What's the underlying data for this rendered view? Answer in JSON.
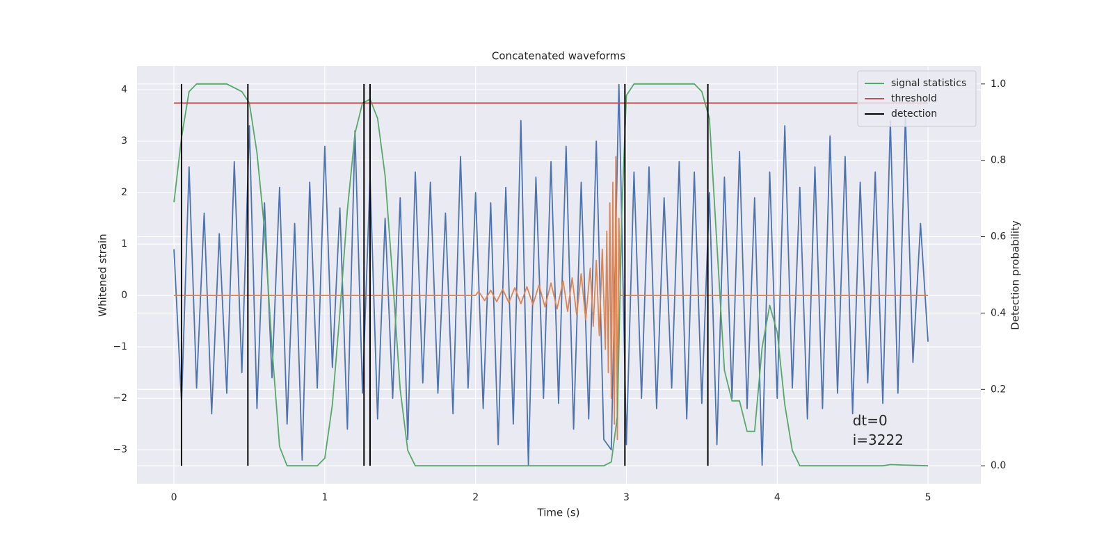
{
  "chart_data": {
    "type": "line",
    "title": "Concatenated waveforms",
    "xlabel": "Time (s)",
    "ylabel": "Whitened strain",
    "y2label": "Detection probability",
    "xlim": [
      -0.245,
      5.35
    ],
    "ylim": [
      -3.66,
      4.46
    ],
    "y2lim": [
      -0.047,
      1.047
    ],
    "xticks": [
      0,
      1,
      2,
      3,
      4,
      5
    ],
    "yticks": [
      {
        "value": -3,
        "label": "−3"
      },
      {
        "value": -2,
        "label": "−2"
      },
      {
        "value": -1,
        "label": "−1"
      },
      0,
      1,
      2,
      3,
      4
    ],
    "y2ticks": [
      {
        "value": 0,
        "label": "0.0"
      },
      0.2,
      0.4,
      0.6,
      0.8,
      {
        "value": 1,
        "label": "1.0"
      }
    ],
    "grid": true,
    "legend": "upper right",
    "annotations": [
      "dt=0",
      "i=3222"
    ],
    "series": [
      {
        "color": "#4c72b0",
        "x": [
          0,
          0.05,
          0.1,
          0.15,
          0.2,
          0.25,
          0.3,
          0.35,
          0.4,
          0.45,
          0.5,
          0.55,
          0.6,
          0.65,
          0.7,
          0.75,
          0.8,
          0.85,
          0.9,
          0.95,
          1,
          1.05,
          1.1,
          1.15,
          1.2,
          1.25,
          1.3,
          1.35,
          1.4,
          1.45,
          1.5,
          1.55,
          1.6,
          1.65,
          1.7,
          1.75,
          1.8,
          1.85,
          1.9,
          1.95,
          2,
          2.05,
          2.1,
          2.15,
          2.2,
          2.25,
          2.3,
          2.35,
          2.4,
          2.45,
          2.5,
          2.55,
          2.6,
          2.65,
          2.7,
          2.75,
          2.8,
          2.85,
          2.9,
          2.95,
          3,
          3.05,
          3.1,
          3.15,
          3.2,
          3.25,
          3.3,
          3.35,
          3.4,
          3.45,
          3.5,
          3.55,
          3.6,
          3.65,
          3.7,
          3.75,
          3.8,
          3.85,
          3.9,
          3.95,
          4,
          4.05,
          4.1,
          4.15,
          4.2,
          4.25,
          4.3,
          4.35,
          4.4,
          4.45,
          4.5,
          4.55,
          4.6,
          4.65,
          4.7,
          4.75,
          4.8,
          4.85,
          4.9,
          4.95,
          5
        ],
        "values": [
          0.9,
          -2.1,
          2.5,
          -1.8,
          1.6,
          -2.3,
          1.2,
          -1.9,
          2.6,
          -1.5,
          3.3,
          -2.2,
          1.8,
          -1.6,
          2.1,
          -2.5,
          1.4,
          -3.2,
          2.2,
          -1.8,
          2.9,
          -1.4,
          1.7,
          -2.6,
          3.2,
          -1.9,
          2.3,
          -2.4,
          1.5,
          -2.0,
          1.9,
          -2.8,
          2.4,
          -1.7,
          2.2,
          -1.9,
          1.6,
          -2.3,
          2.7,
          -1.8,
          2.0,
          -2.2,
          1.8,
          -2.9,
          2.1,
          -2.5,
          3.4,
          -3.3,
          2.3,
          -2.0,
          2.6,
          -2.1,
          2.9,
          -2.6,
          2.2,
          -2.4,
          3.0,
          -2.8,
          -3.0,
          4.1,
          -2.9,
          2.4,
          -2.0,
          2.5,
          -2.2,
          1.9,
          -1.8,
          2.6,
          -2.4,
          2.4,
          -2.1,
          2.0,
          -2.9,
          2.3,
          -2.0,
          2.8,
          -2.2,
          1.9,
          -3.3,
          2.4,
          -2.0,
          3.3,
          -1.8,
          2.1,
          -2.4,
          2.5,
          -2.2,
          3.1,
          -1.9,
          2.7,
          -2.3,
          2.2,
          -1.7,
          2.4,
          -2.1,
          3.4,
          -1.9,
          3.5,
          -1.3,
          1.4,
          -0.9
        ]
      },
      {
        "color": "#dd8452",
        "x": [
          0,
          2,
          2.02,
          2.06,
          2.1,
          2.14,
          2.18,
          2.22,
          2.26,
          2.3,
          2.34,
          2.38,
          2.42,
          2.46,
          2.5,
          2.54,
          2.58,
          2.61,
          2.64,
          2.67,
          2.7,
          2.73,
          2.76,
          2.78,
          2.8,
          2.82,
          2.84,
          2.86,
          2.87,
          2.88,
          2.89,
          2.9,
          2.91,
          2.92,
          2.93,
          2.94,
          2.95,
          2.96,
          5
        ],
        "values": [
          0,
          0,
          0.08,
          -0.1,
          0.1,
          -0.12,
          0.12,
          -0.14,
          0.15,
          -0.16,
          0.17,
          -0.18,
          0.2,
          -0.22,
          0.24,
          -0.26,
          0.28,
          -0.31,
          0.34,
          -0.38,
          0.42,
          -0.47,
          0.53,
          -0.6,
          0.68,
          -0.78,
          0.9,
          -1.05,
          1.25,
          -1.5,
          1.8,
          -2.0,
          2.2,
          -2.5,
          2.7,
          -2.8,
          1.5,
          0,
          0
        ]
      },
      {
        "name": "signal statistics",
        "color": "#55a868",
        "axis": "y2",
        "x": [
          0,
          0.05,
          0.1,
          0.15,
          0.35,
          0.45,
          0.5,
          0.55,
          0.6,
          0.65,
          0.7,
          0.75,
          0.95,
          1,
          1.05,
          1.1,
          1.15,
          1.2,
          1.25,
          1.3,
          1.35,
          1.4,
          1.45,
          1.5,
          1.55,
          1.6,
          2.85,
          2.9,
          2.94,
          2.97,
          3,
          3.05,
          3.45,
          3.5,
          3.55,
          3.6,
          3.65,
          3.7,
          3.75,
          3.8,
          3.85,
          3.9,
          3.95,
          4,
          4.05,
          4.1,
          4.15,
          4.7,
          4.75,
          5
        ],
        "values": [
          0.69,
          0.86,
          0.98,
          1.0,
          1.0,
          0.98,
          0.95,
          0.82,
          0.62,
          0.31,
          0.05,
          0.0,
          0.0,
          0.02,
          0.16,
          0.4,
          0.67,
          0.87,
          0.95,
          0.96,
          0.91,
          0.76,
          0.49,
          0.2,
          0.04,
          0.0,
          0.0,
          0.01,
          0.13,
          0.67,
          0.97,
          1.0,
          1.0,
          0.98,
          0.91,
          0.58,
          0.25,
          0.17,
          0.17,
          0.09,
          0.09,
          0.31,
          0.42,
          0.35,
          0.16,
          0.04,
          0.0,
          0.0,
          0.003,
          0.0
        ]
      },
      {
        "name": "threshold",
        "color": "#c44e52",
        "axis": "y2",
        "x": [
          0,
          5
        ],
        "values": [
          0.95,
          0.95
        ]
      },
      {
        "name": "detection",
        "color": "#000000",
        "axis": "y2",
        "style": "vlines",
        "x": [
          0.05,
          0.49,
          1.26,
          1.3,
          2.99,
          3.54
        ],
        "values": [
          1,
          1,
          1,
          1,
          1,
          1
        ]
      }
    ]
  }
}
